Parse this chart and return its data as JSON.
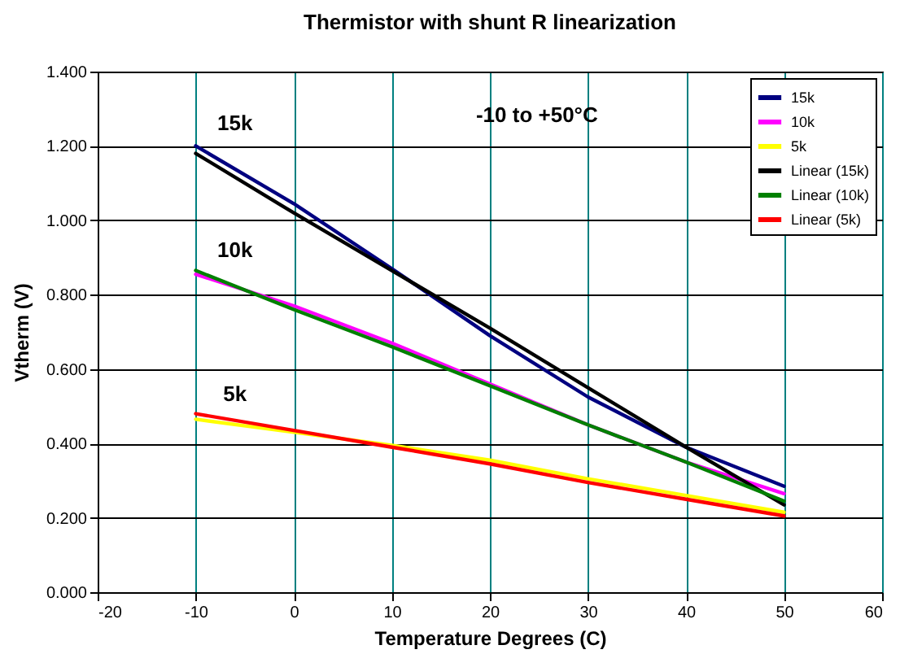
{
  "chart_data": {
    "type": "line",
    "title": "Thermistor with shunt R linearization",
    "xlabel": "Temperature Degrees (C)",
    "ylabel": "Vtherm (V)",
    "x": [
      -10,
      0,
      10,
      20,
      30,
      40,
      50
    ],
    "series": [
      {
        "name": "15k",
        "color": "#000080",
        "values": [
          1.2,
          1.045,
          0.87,
          0.69,
          0.525,
          0.39,
          0.285
        ]
      },
      {
        "name": "10k",
        "color": "#ff00ff",
        "values": [
          0.855,
          0.77,
          0.67,
          0.56,
          0.45,
          0.35,
          0.265
        ]
      },
      {
        "name": "5k",
        "color": "#ffff00",
        "values": [
          0.465,
          0.43,
          0.395,
          0.355,
          0.305,
          0.26,
          0.215
        ]
      },
      {
        "name": "Linear (15k)",
        "color": "#000000",
        "values": [
          1.18,
          1.02,
          0.865,
          0.71,
          0.55,
          0.39,
          0.235
        ]
      },
      {
        "name": "Linear (10k)",
        "color": "#008000",
        "values": [
          0.865,
          0.76,
          0.66,
          0.555,
          0.45,
          0.35,
          0.245
        ]
      },
      {
        "name": "Linear (5k)",
        "color": "#ff0000",
        "values": [
          0.48,
          0.435,
          0.39,
          0.345,
          0.295,
          0.25,
          0.205
        ]
      }
    ],
    "annotations": [
      "-10 to +50°C",
      "15k",
      "10k",
      "5k"
    ],
    "xlim": [
      -20,
      60
    ],
    "xticks": [
      -20,
      -10,
      0,
      10,
      20,
      30,
      40,
      50,
      60
    ],
    "ylim": [
      0,
      1.4
    ],
    "yticks": [
      {
        "value": 0,
        "label": "0.000"
      },
      {
        "value": 0.2,
        "label": "0.200"
      },
      {
        "value": 0.4,
        "label": "0.400"
      },
      {
        "value": 0.6,
        "label": "0.600"
      },
      {
        "value": 0.8,
        "label": "0.800"
      },
      {
        "value": 1,
        "label": "1.000"
      },
      {
        "value": 1.2,
        "label": "1.200"
      },
      {
        "value": 1.4,
        "label": "1.400"
      }
    ],
    "grid": true,
    "legend": "top right"
  }
}
